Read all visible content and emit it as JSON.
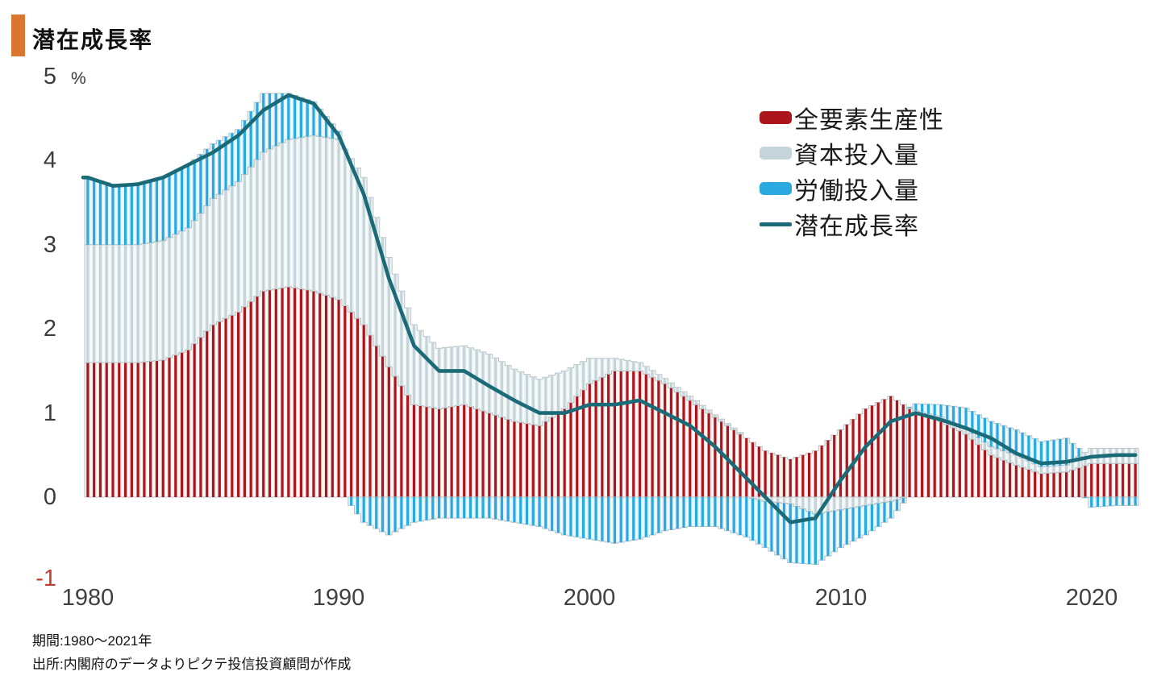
{
  "header": {
    "title": "潜在成長率",
    "accent_color": "#DC7530"
  },
  "y_axis": {
    "unit": "%",
    "ticks": [
      {
        "label": "5",
        "value": 5,
        "color": "#3c3c3c"
      },
      {
        "label": "4",
        "value": 4,
        "color": "#3c3c3c"
      },
      {
        "label": "3",
        "value": 3,
        "color": "#3c3c3c"
      },
      {
        "label": "2",
        "value": 2,
        "color": "#3c3c3c"
      },
      {
        "label": "1",
        "value": 1,
        "color": "#3c3c3c"
      },
      {
        "label": "0",
        "value": 0,
        "color": "#3c3c3c"
      },
      {
        "label": "-1",
        "value": -1,
        "color": "#C23A2D"
      }
    ]
  },
  "x_axis": {
    "ticks": [
      "1980",
      "1990",
      "2000",
      "2010",
      "2020"
    ]
  },
  "legend": {
    "items": [
      {
        "label": "全要素生産性",
        "color": "#AC151B",
        "type": "bar"
      },
      {
        "label": "資本投入量",
        "color": "#C5D4D8",
        "type": "bar"
      },
      {
        "label": "労働投入量",
        "color": "#29A9E0",
        "type": "bar"
      },
      {
        "label": "潜在成長率",
        "color": "#1A6B77",
        "type": "line"
      }
    ]
  },
  "footer": {
    "period_line": "期間:1980〜2021年",
    "source_line": "出所:内閣府のデータよりピクテ投信投資顧問が作成"
  },
  "chart_data": {
    "type": "bar",
    "subtype": "stacked-bar-with-line",
    "title": "潜在成長率",
    "ylabel": "%",
    "ylim": [
      -1,
      5
    ],
    "grid": false,
    "legend_position": "upper-right",
    "frequency_note": "annual estimates, rendered as quarterly bars by linear interpolation",
    "x_years": [
      1980,
      1981,
      1982,
      1983,
      1984,
      1985,
      1986,
      1987,
      1988,
      1989,
      1990,
      1991,
      1992,
      1993,
      1994,
      1995,
      1996,
      1997,
      1998,
      1999,
      2000,
      2001,
      2002,
      2003,
      2004,
      2005,
      2006,
      2007,
      2008,
      2009,
      2010,
      2011,
      2012,
      2013,
      2014,
      2015,
      2016,
      2017,
      2018,
      2019,
      2020,
      2021
    ],
    "outline_color": "#B8C4C8",
    "series": [
      {
        "name": "全要素生産性",
        "type": "bar",
        "color": "#AC151B",
        "color_light": "#F8EFEE",
        "values": [
          1.6,
          1.6,
          1.6,
          1.63,
          1.75,
          2.05,
          2.2,
          2.45,
          2.5,
          2.45,
          2.35,
          2.05,
          1.55,
          1.1,
          1.05,
          1.1,
          1.0,
          0.9,
          0.85,
          1.05,
          1.35,
          1.5,
          1.5,
          1.35,
          1.15,
          0.95,
          0.75,
          0.55,
          0.45,
          0.55,
          0.8,
          1.05,
          1.2,
          1.0,
          0.9,
          0.75,
          0.5,
          0.38,
          0.28,
          0.3,
          0.4,
          0.4
        ]
      },
      {
        "name": "資本投入量",
        "type": "bar",
        "color": "#C5D4D8",
        "color_light": "#EFF4F5",
        "values": [
          1.4,
          1.4,
          1.4,
          1.42,
          1.45,
          1.5,
          1.55,
          1.65,
          1.75,
          1.85,
          1.9,
          1.75,
          1.3,
          0.95,
          0.72,
          0.7,
          0.7,
          0.62,
          0.55,
          0.45,
          0.3,
          0.15,
          0.1,
          0.06,
          0.05,
          0.03,
          0.02,
          -0.05,
          -0.08,
          -0.2,
          -0.15,
          -0.1,
          -0.05,
          0.03,
          0.05,
          0.06,
          0.1,
          0.12,
          0.08,
          0.08,
          0.18,
          0.18
        ]
      },
      {
        "name": "労働投入量",
        "type": "bar",
        "color": "#29A9E0",
        "color_light": "#DFF2FB",
        "values": [
          0.8,
          0.72,
          0.72,
          0.75,
          0.75,
          0.65,
          0.62,
          0.7,
          0.55,
          0.4,
          0.1,
          -0.3,
          -0.45,
          -0.3,
          -0.25,
          -0.25,
          -0.25,
          -0.3,
          -0.35,
          -0.45,
          -0.5,
          -0.55,
          -0.5,
          -0.4,
          -0.35,
          -0.35,
          -0.45,
          -0.55,
          -0.7,
          -0.6,
          -0.45,
          -0.35,
          -0.2,
          0.08,
          0.15,
          0.25,
          0.3,
          0.3,
          0.3,
          0.32,
          -0.12,
          -0.1
        ]
      },
      {
        "name": "潜在成長率",
        "type": "line",
        "color": "#1A6B77",
        "values": [
          3.8,
          3.7,
          3.72,
          3.8,
          3.95,
          4.1,
          4.3,
          4.6,
          4.78,
          4.68,
          4.3,
          3.6,
          2.6,
          1.8,
          1.5,
          1.5,
          1.32,
          1.15,
          1.0,
          1.0,
          1.1,
          1.1,
          1.15,
          1.0,
          0.85,
          0.6,
          0.3,
          0.0,
          -0.3,
          -0.25,
          0.2,
          0.6,
          0.9,
          1.0,
          0.92,
          0.82,
          0.7,
          0.52,
          0.4,
          0.42,
          0.48,
          0.5
        ]
      }
    ]
  }
}
